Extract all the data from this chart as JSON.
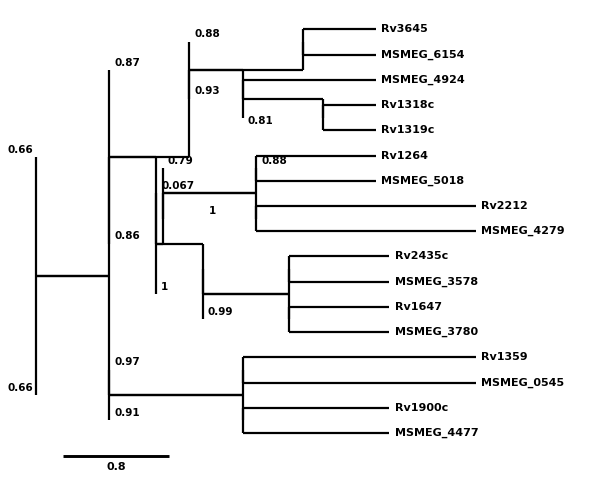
{
  "figsize": [
    6.0,
    4.78
  ],
  "dpi": 100,
  "background_color": "#ffffff",
  "line_color": "#000000",
  "line_width": 1.6,
  "label_font_size": 8.0,
  "support_font_size": 7.5,
  "bold_labels": true,
  "leaves_top_to_bottom": [
    "Rv3645",
    "MSMEG_6154",
    "MSMEG_4924",
    "Rv1318c",
    "Rv1319c",
    "Rv1264",
    "MSMEG_5018",
    "Rv2212",
    "MSMEG_4279",
    "Rv2435c",
    "MSMEG_3578",
    "Rv1647",
    "MSMEG_3780",
    "Rv1359",
    "MSMEG_0545",
    "Rv1900c",
    "MSMEG_4477"
  ]
}
